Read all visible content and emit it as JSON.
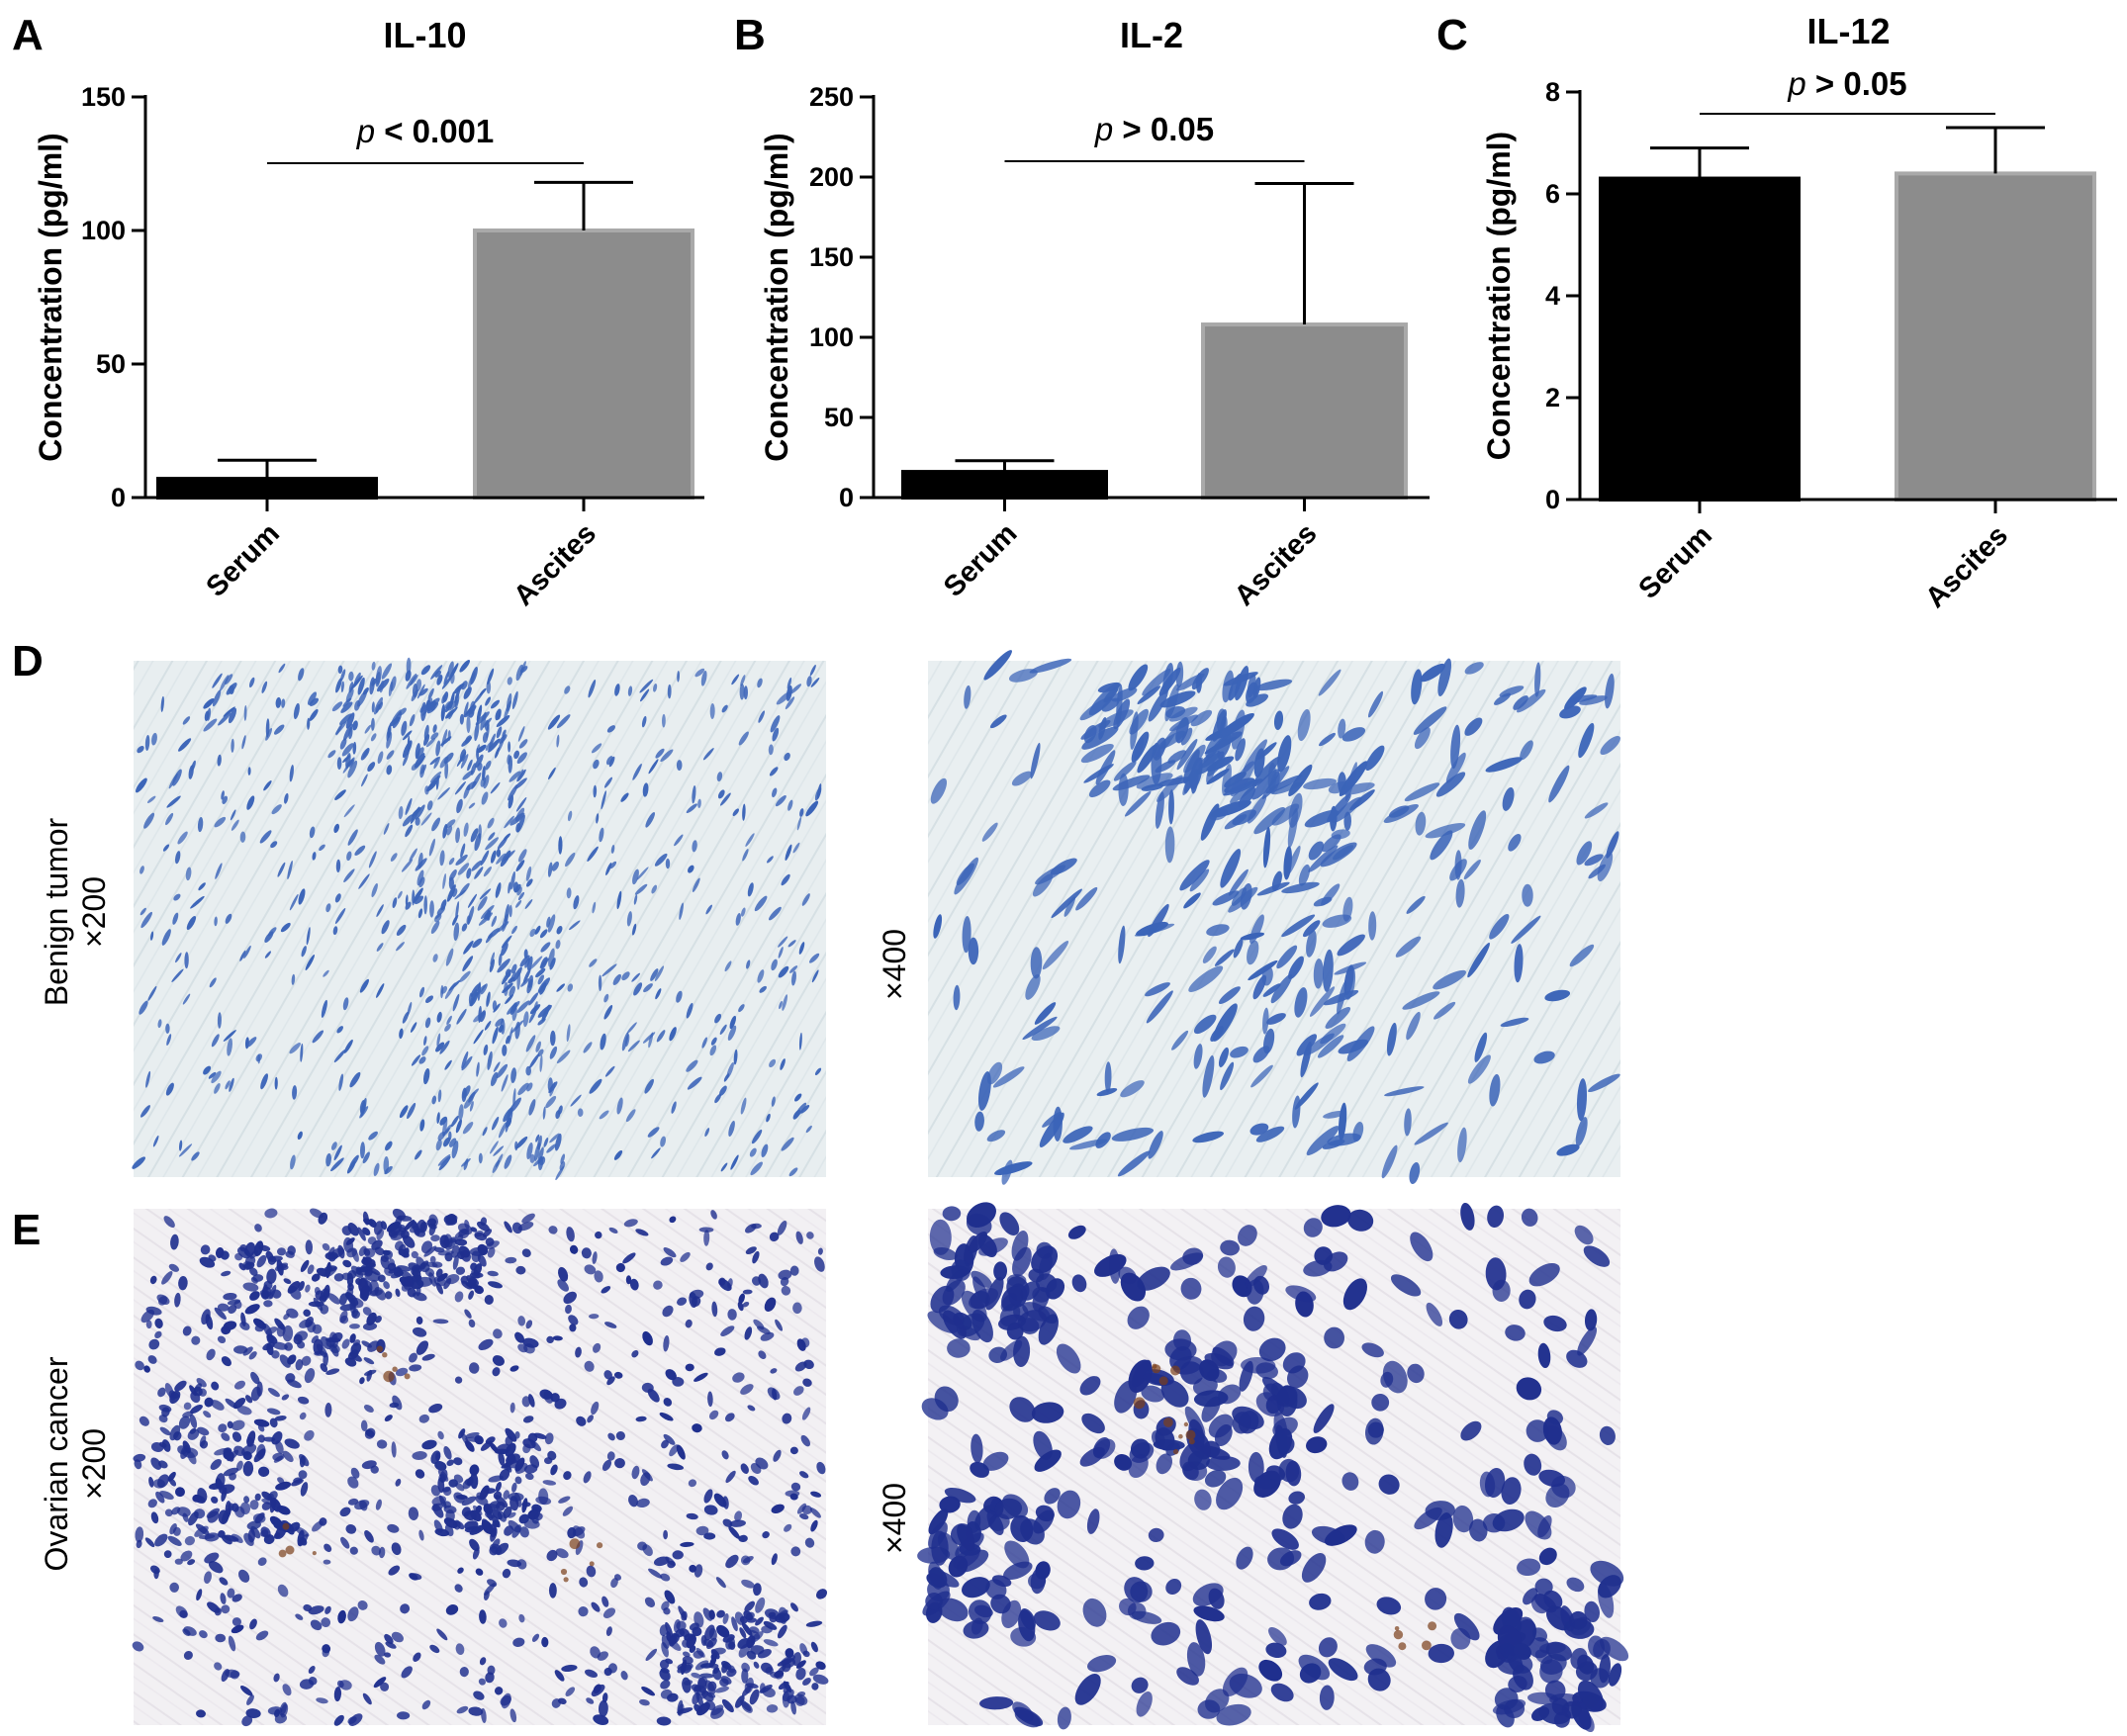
{
  "chart_data": [
    {
      "panel": "A",
      "type": "bar",
      "title": "IL-10",
      "ylabel": "Concentration (pg/ml)",
      "categories": [
        "Serum",
        "Ascites"
      ],
      "values": [
        7,
        100
      ],
      "errors": [
        7,
        18
      ],
      "bar_colors": [
        "#000000",
        "#8c8c8c"
      ],
      "ylim": [
        0,
        150
      ],
      "yticks": [
        0,
        50,
        100,
        150
      ],
      "annotation": {
        "p_symbol": "p",
        "p_text": " < 0.001"
      }
    },
    {
      "panel": "B",
      "type": "bar",
      "title": "IL-2",
      "ylabel": "Concentration (pg/ml)",
      "categories": [
        "Serum",
        "Ascites"
      ],
      "values": [
        16,
        108
      ],
      "errors": [
        7,
        88
      ],
      "bar_colors": [
        "#000000",
        "#8c8c8c"
      ],
      "ylim": [
        0,
        250
      ],
      "yticks": [
        0,
        50,
        100,
        150,
        200,
        250
      ],
      "annotation": {
        "p_symbol": "p",
        "p_text": " > 0.05"
      }
    },
    {
      "panel": "C",
      "type": "bar",
      "title": "IL-12",
      "ylabel": "Concentration (pg/ml)",
      "categories": [
        "Serum",
        "Ascites"
      ],
      "values": [
        6.3,
        6.4
      ],
      "errors": [
        0.6,
        0.9
      ],
      "bar_colors": [
        "#000000",
        "#8c8c8c"
      ],
      "ylim": [
        0,
        8
      ],
      "yticks": [
        0,
        2,
        4,
        6,
        8
      ],
      "annotation": {
        "p_symbol": "p",
        "p_text": " > 0.05"
      }
    }
  ],
  "micrographs": {
    "D": {
      "letter": "D",
      "row_label_1": "Benign tumor",
      "row_label_2": "×200",
      "right_label": "×400"
    },
    "E": {
      "letter": "E",
      "row_label_1": "Ovarian cancer",
      "row_label_2": "×200",
      "right_label": "×400"
    }
  },
  "colors": {
    "benign_bg": "#e8eef0",
    "benign_nuclei": "#3b64b8",
    "cancer_bg": "#f2f0f3",
    "cancer_nuclei": "#1f2f8e",
    "brown_stain": "#7a3e1a"
  }
}
